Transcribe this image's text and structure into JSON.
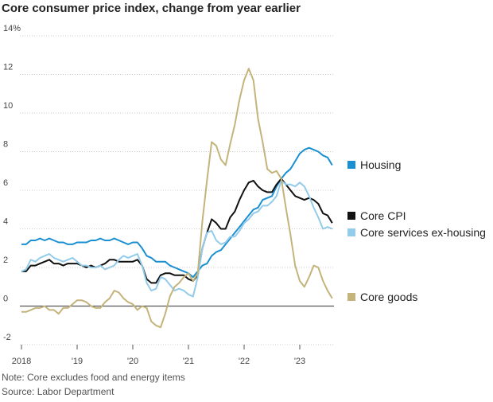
{
  "chart_data": {
    "type": "line",
    "title": "Core consumer price index, change from year earlier",
    "note": "Note: Core excludes food and energy items",
    "source": "Source: Labor Department",
    "categories": [
      "2018",
      null,
      null,
      null,
      null,
      null,
      null,
      null,
      null,
      null,
      null,
      null,
      "'19",
      null,
      null,
      null,
      null,
      null,
      null,
      null,
      null,
      null,
      null,
      null,
      "'20",
      null,
      null,
      null,
      null,
      null,
      null,
      null,
      null,
      null,
      null,
      null,
      "'21",
      null,
      null,
      null,
      null,
      null,
      null,
      null,
      null,
      null,
      null,
      null,
      "'22",
      null,
      null,
      null,
      null,
      null,
      null,
      null,
      null,
      null,
      null,
      null,
      "'23",
      null,
      null,
      null,
      null,
      null,
      null,
      null
    ],
    "ylim": [
      -2,
      14
    ],
    "yticks": [
      -2,
      0,
      2,
      4,
      6,
      8,
      10,
      12,
      {
        "value": 14,
        "label": "14%"
      }
    ],
    "grid": true,
    "series": [
      {
        "name": "Housing",
        "color": "#1a8fd1",
        "values": [
          3.2,
          3.2,
          3.4,
          3.4,
          3.5,
          3.4,
          3.5,
          3.4,
          3.3,
          3.3,
          3.2,
          3.2,
          3.3,
          3.3,
          3.3,
          3.4,
          3.4,
          3.5,
          3.4,
          3.4,
          3.5,
          3.4,
          3.3,
          3.2,
          3.3,
          3.3,
          3.0,
          2.6,
          2.5,
          2.3,
          2.3,
          2.3,
          2.1,
          2.0,
          1.9,
          1.8,
          1.7,
          1.5,
          1.8,
          2.1,
          2.2,
          2.6,
          2.8,
          2.9,
          3.2,
          3.5,
          3.8,
          4.1,
          4.4,
          4.7,
          5.0,
          5.1,
          5.5,
          5.6,
          5.7,
          6.2,
          6.6,
          6.9,
          7.1,
          7.5,
          7.9,
          8.1,
          8.2,
          8.1,
          8.0,
          7.8,
          7.7,
          7.3
        ]
      },
      {
        "name": "Core CPI",
        "color": "#111111",
        "values": [
          1.8,
          1.8,
          2.1,
          2.1,
          2.2,
          2.3,
          2.4,
          2.2,
          2.2,
          2.1,
          2.2,
          2.2,
          2.2,
          2.1,
          2.0,
          2.1,
          2.0,
          2.1,
          2.2,
          2.4,
          2.4,
          2.3,
          2.3,
          2.3,
          2.3,
          2.4,
          2.1,
          1.4,
          1.2,
          1.2,
          1.6,
          1.7,
          1.7,
          1.6,
          1.6,
          1.6,
          1.4,
          1.3,
          1.6,
          3.0,
          3.8,
          4.5,
          4.3,
          4.0,
          4.0,
          4.6,
          4.9,
          5.5,
          6.0,
          6.4,
          6.5,
          6.2,
          6.0,
          5.9,
          5.9,
          6.3,
          6.6,
          6.3,
          6.0,
          5.7,
          5.6,
          5.5,
          5.6,
          5.5,
          5.3,
          4.8,
          4.7,
          4.3
        ]
      },
      {
        "name": "Core services ex-housing",
        "color": "#93cbea",
        "values": [
          1.8,
          1.9,
          2.4,
          2.3,
          2.5,
          2.6,
          2.7,
          2.5,
          2.4,
          2.3,
          2.4,
          2.5,
          2.3,
          2.1,
          2.1,
          2.0,
          2.0,
          2.1,
          1.9,
          2.0,
          2.1,
          2.4,
          2.6,
          2.5,
          2.6,
          2.7,
          2.1,
          1.2,
          0.8,
          0.9,
          1.5,
          1.4,
          1.1,
          0.8,
          0.9,
          0.8,
          0.6,
          0.5,
          1.5,
          3.0,
          3.8,
          3.9,
          3.4,
          3.2,
          3.3,
          3.6,
          3.6,
          3.9,
          4.3,
          4.5,
          4.8,
          4.9,
          5.2,
          5.2,
          5.4,
          5.7,
          6.5,
          6.3,
          6.3,
          6.2,
          6.4,
          6.2,
          5.7,
          5.1,
          4.6,
          4.0,
          4.1,
          4.0
        ]
      },
      {
        "name": "Core goods",
        "color": "#c4b47c",
        "values": [
          -0.3,
          -0.3,
          -0.2,
          -0.1,
          -0.1,
          0.0,
          -0.2,
          -0.2,
          -0.4,
          -0.1,
          -0.1,
          0.1,
          0.3,
          0.3,
          0.2,
          0.0,
          -0.1,
          -0.1,
          0.2,
          0.4,
          0.8,
          0.7,
          0.4,
          0.2,
          0.1,
          -0.2,
          0.0,
          -0.1,
          -0.8,
          -1.0,
          -1.1,
          -0.4,
          0.5,
          1.0,
          1.2,
          1.5,
          1.7,
          1.3,
          1.7,
          4.4,
          6.5,
          8.5,
          8.3,
          7.6,
          7.3,
          8.4,
          9.4,
          10.7,
          11.7,
          12.3,
          11.7,
          9.7,
          8.5,
          7.1,
          6.9,
          7.0,
          6.6,
          5.1,
          3.7,
          2.1,
          1.3,
          1.0,
          1.5,
          2.1,
          2.0,
          1.3,
          0.8,
          0.4
        ]
      }
    ]
  }
}
